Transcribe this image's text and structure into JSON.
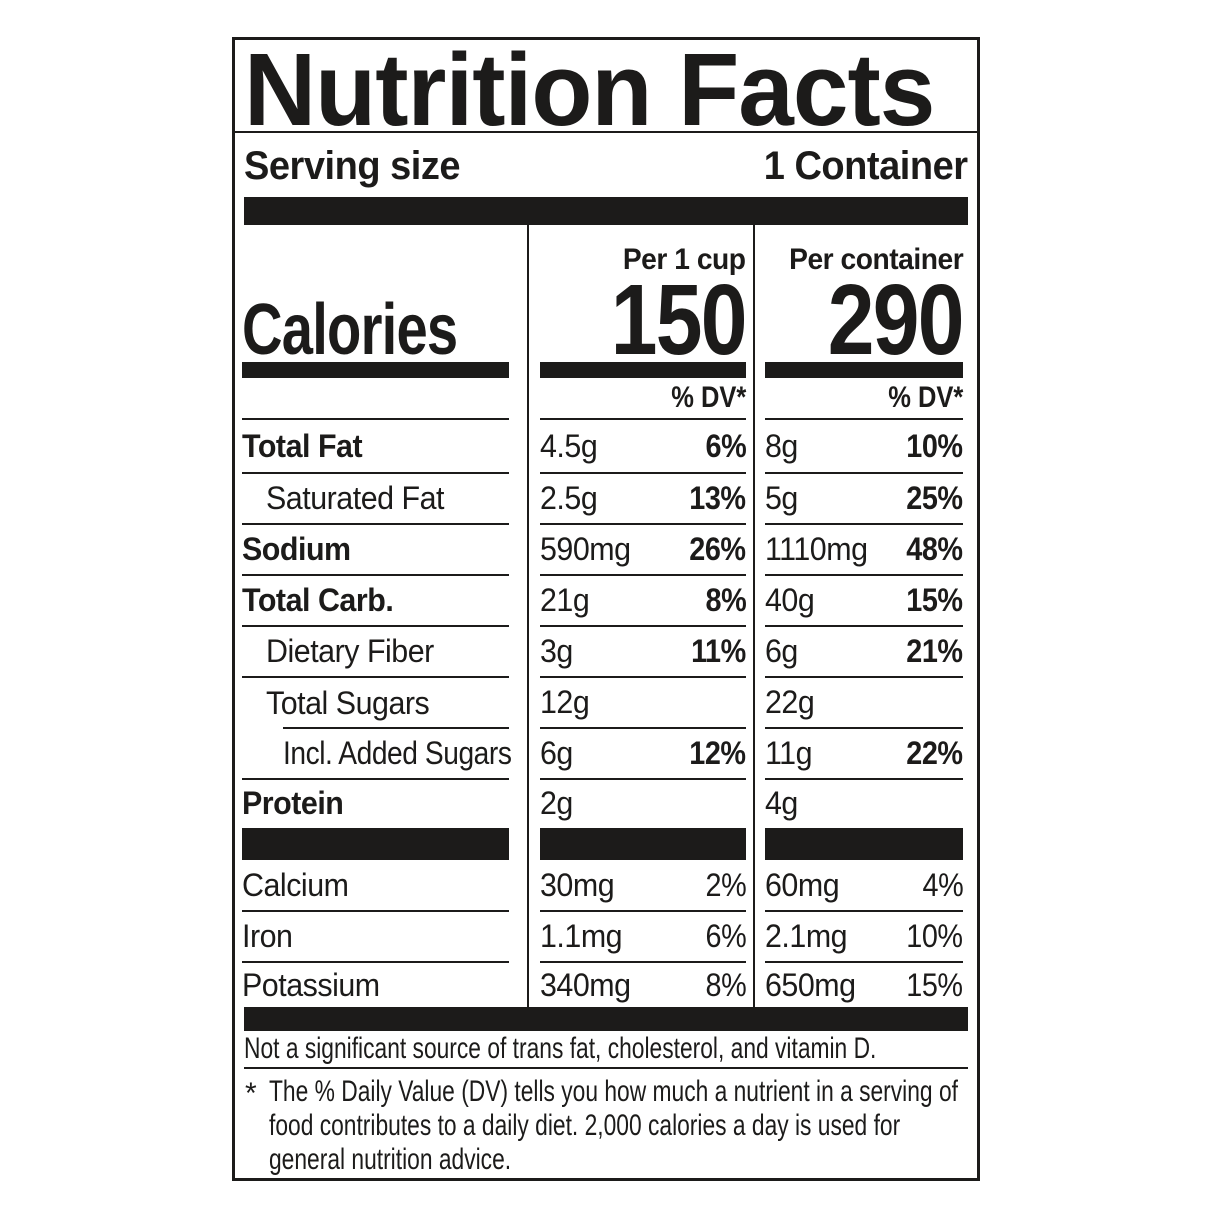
{
  "title": "Nutrition Facts",
  "serving": {
    "label": "Serving size",
    "value": "1 Container"
  },
  "calories": {
    "label": "Calories",
    "per_cup_header": "Per 1 cup",
    "per_cup_value": "150",
    "per_container_header": "Per container",
    "per_container_value": "290",
    "dv_header_cup": "% DV*",
    "dv_header_container": "% DV*"
  },
  "nutrients": [
    {
      "name": "Total Fat",
      "cup_amount": "4.5g",
      "cup_dv": "6%",
      "container_amount": "8g",
      "container_dv": "10%"
    },
    {
      "name": "Saturated Fat",
      "cup_amount": "2.5g",
      "cup_dv": "13%",
      "container_amount": "5g",
      "container_dv": "25%"
    },
    {
      "name": "Sodium",
      "cup_amount": "590mg",
      "cup_dv": "26%",
      "container_amount": "1110mg",
      "container_dv": "48%"
    },
    {
      "name": "Total Carb.",
      "cup_amount": "21g",
      "cup_dv": "8%",
      "container_amount": "40g",
      "container_dv": "15%"
    },
    {
      "name": "Dietary Fiber",
      "cup_amount": "3g",
      "cup_dv": "11%",
      "container_amount": "6g",
      "container_dv": "21%"
    },
    {
      "name": "Total Sugars",
      "cup_amount": "12g",
      "cup_dv": "",
      "container_amount": "22g",
      "container_dv": ""
    },
    {
      "name": "Incl. Added Sugars",
      "cup_amount": "6g",
      "cup_dv": "12%",
      "container_amount": "11g",
      "container_dv": "22%"
    },
    {
      "name": "Protein",
      "cup_amount": "2g",
      "cup_dv": "",
      "container_amount": "4g",
      "container_dv": ""
    }
  ],
  "minerals": [
    {
      "name": "Calcium",
      "cup_amount": "30mg",
      "cup_dv": "2%",
      "container_amount": "60mg",
      "container_dv": "4%"
    },
    {
      "name": "Iron",
      "cup_amount": "1.1mg",
      "cup_dv": "6%",
      "container_amount": "2.1mg",
      "container_dv": "10%"
    },
    {
      "name": "Potassium",
      "cup_amount": "340mg",
      "cup_dv": "8%",
      "container_amount": "650mg",
      "container_dv": "15%"
    }
  ],
  "footnotes": {
    "not_significant": "Not a significant source of trans fat, cholesterol, and vitamin D.",
    "dv_symbol": "*",
    "dv_note_lines": [
      "The % Daily Value (DV) tells you how much a nutrient in a serving of",
      "food contributes to a daily diet. 2,000 calories a day is used for",
      "general nutrition advice."
    ]
  },
  "colors": {
    "ink": "#1c1b1a",
    "background": "#ffffff"
  }
}
